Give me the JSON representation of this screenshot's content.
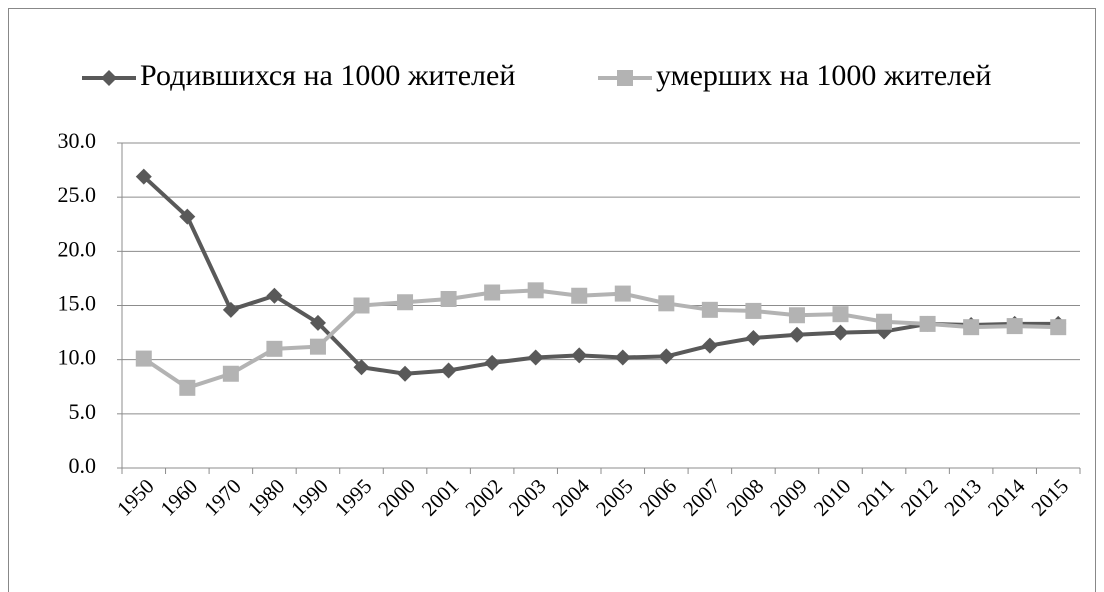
{
  "chart_data": {
    "type": "line",
    "categories": [
      "1950",
      "1960",
      "1970",
      "1980",
      "1990",
      "1995",
      "2000",
      "2001",
      "2002",
      "2003",
      "2004",
      "2005",
      "2006",
      "2007",
      "2008",
      "2009",
      "2010",
      "2011",
      "2012",
      "2013",
      "2014",
      "2015"
    ],
    "series": [
      {
        "name": "Родившихся на 1000 жителей",
        "color": "#595959",
        "marker": "diamond",
        "values": [
          26.9,
          23.2,
          14.6,
          15.9,
          13.4,
          9.3,
          8.7,
          9.0,
          9.7,
          10.2,
          10.4,
          10.2,
          10.3,
          11.3,
          12.0,
          12.3,
          12.5,
          12.6,
          13.3,
          13.2,
          13.3,
          13.3
        ]
      },
      {
        "name": "умерших на 1000 жителей",
        "color": "#b3b3b3",
        "marker": "square",
        "values": [
          10.1,
          7.4,
          8.7,
          11.0,
          11.2,
          15.0,
          15.3,
          15.6,
          16.2,
          16.4,
          15.9,
          16.1,
          15.2,
          14.6,
          14.5,
          14.1,
          14.2,
          13.5,
          13.3,
          13.0,
          13.1,
          13.0
        ]
      }
    ],
    "ylim": [
      0,
      30
    ],
    "yticks": [
      {
        "value": 0,
        "label": "0.0"
      },
      {
        "value": 5,
        "label": "5.0"
      },
      {
        "value": 10,
        "label": "10.0"
      },
      {
        "value": 15,
        "label": "15.0"
      },
      {
        "value": 20,
        "label": "20.0"
      },
      {
        "value": 25,
        "label": "25.0"
      },
      {
        "value": 30,
        "label": "30.0"
      }
    ],
    "grid": true
  }
}
